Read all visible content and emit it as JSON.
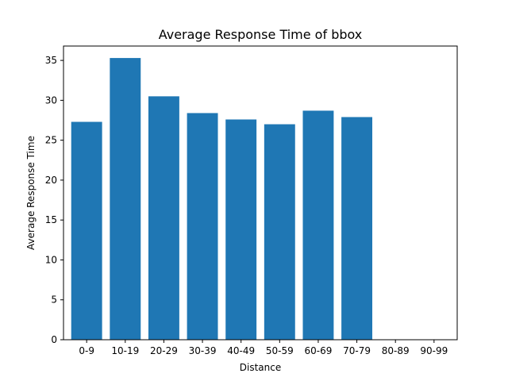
{
  "chart_data": {
    "type": "bar",
    "title": "Average Response Time of bbox",
    "xlabel": "Distance",
    "ylabel": "Average Response Time",
    "categories": [
      "0-9",
      "10-19",
      "20-29",
      "30-39",
      "40-49",
      "50-59",
      "60-69",
      "70-79",
      "80-89",
      "90-99"
    ],
    "values": [
      27.3,
      35.3,
      30.5,
      28.4,
      27.6,
      27.0,
      28.7,
      27.9,
      null,
      null
    ],
    "ylim": [
      0,
      36.8
    ],
    "yticks": [
      0,
      5,
      10,
      15,
      20,
      25,
      30,
      35
    ],
    "grid": false,
    "legend": "none",
    "bar_color": "#1f77b4"
  }
}
